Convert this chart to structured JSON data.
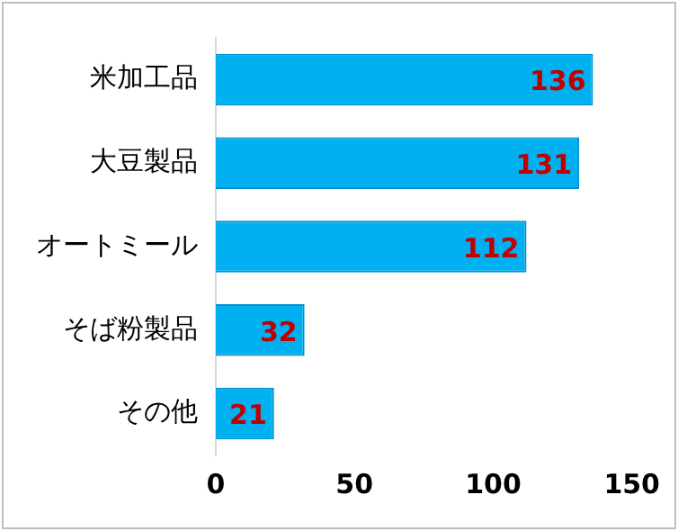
{
  "chart_data": {
    "type": "bar",
    "orientation": "horizontal",
    "categories": [
      "米加工品",
      "大豆製品",
      "オートミール",
      "そば粉製品",
      "その他"
    ],
    "values": [
      136,
      131,
      112,
      32,
      21
    ],
    "color": "#00b0f0",
    "xlim": [
      0,
      150
    ],
    "xticks": [
      0,
      50,
      100,
      150
    ],
    "grid": false,
    "data_labels": true,
    "legend": false
  }
}
